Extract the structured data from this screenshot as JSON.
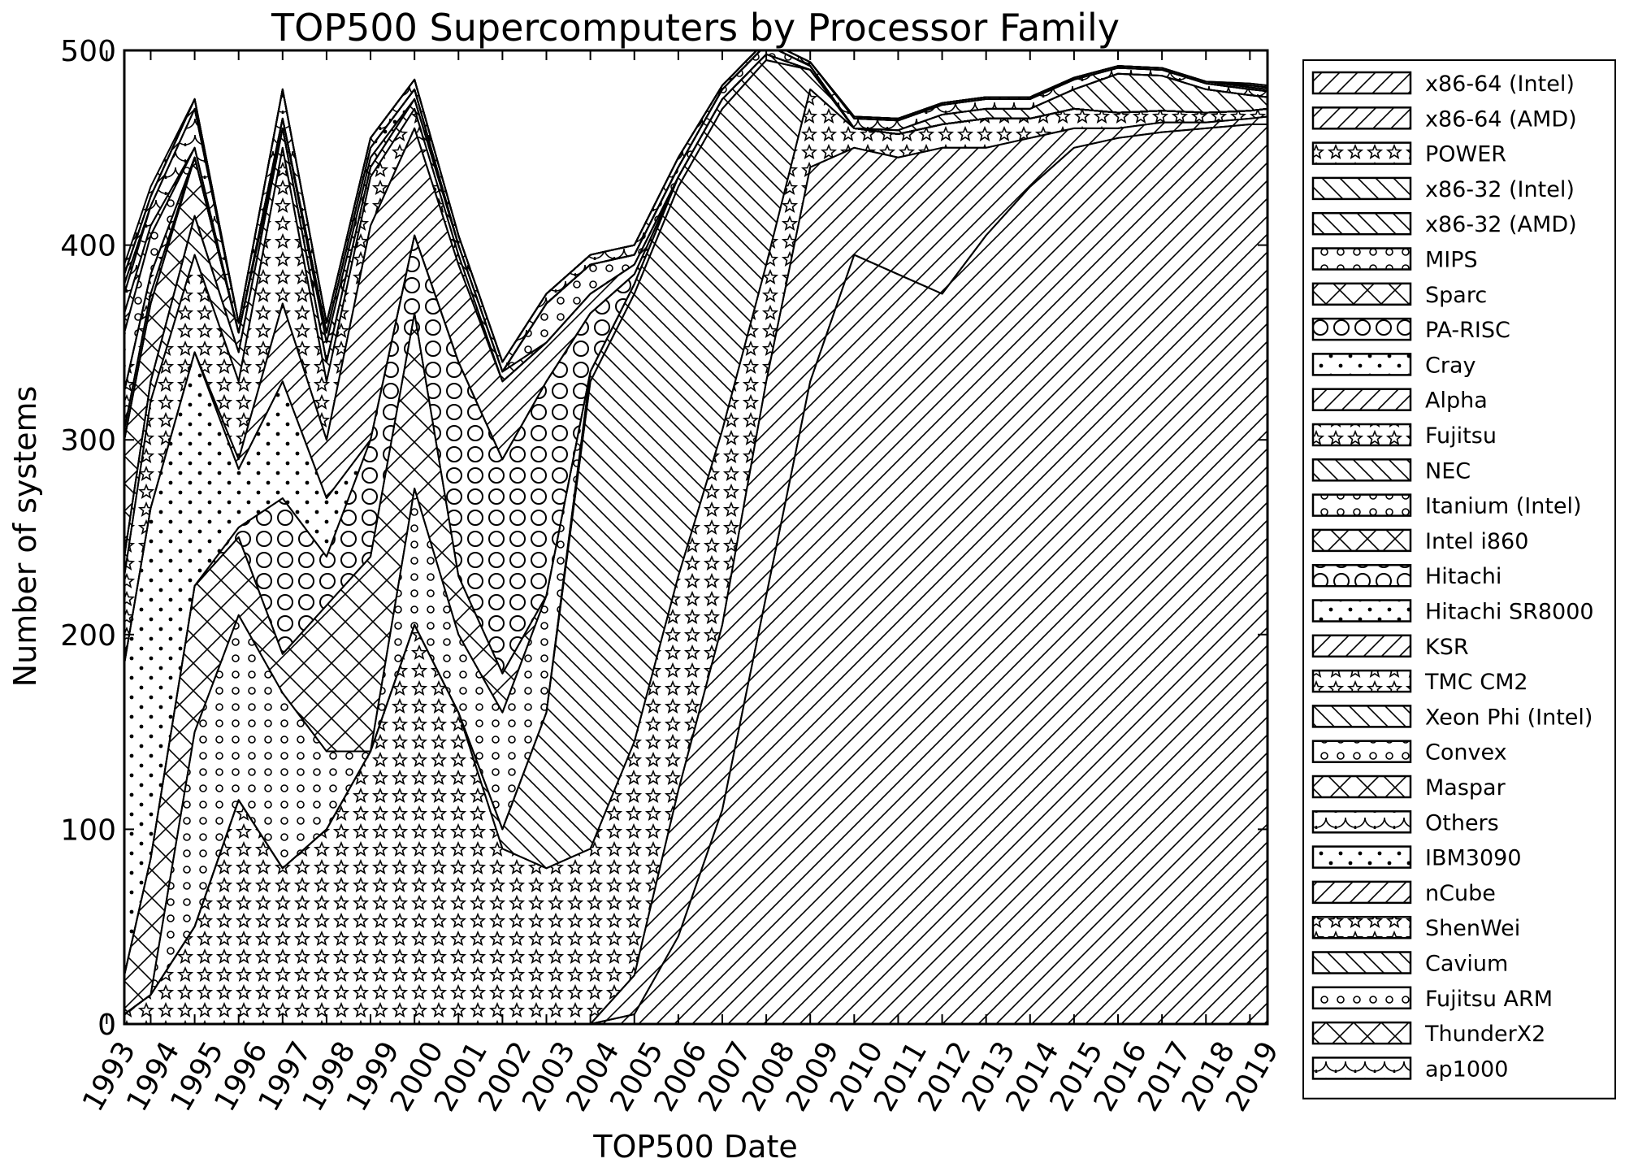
{
  "chart_data": {
    "type": "area",
    "stacked": true,
    "title": "TOP500 Supercomputers by Processor Family",
    "xlabel": "TOP500 Date",
    "ylabel": "Number of systems",
    "xlim": [
      1993.4,
      2019.4
    ],
    "ylim": [
      0,
      500
    ],
    "yticks": [
      0,
      100,
      200,
      300,
      400,
      500
    ],
    "xticks": [
      "1993",
      "1994",
      "1995",
      "1996",
      "1997",
      "1998",
      "1999",
      "2000",
      "2001",
      "2002",
      "2003",
      "2004",
      "2005",
      "2006",
      "2007",
      "2008",
      "2009",
      "2010",
      "2011",
      "2012",
      "2013",
      "2014",
      "2015",
      "2016",
      "2017",
      "2018",
      "2019"
    ],
    "grid": false,
    "legend_position": "right",
    "x": [
      1993.4,
      1994,
      1995,
      1996,
      1997,
      1998,
      1999,
      2000,
      2001,
      2002,
      2003,
      2004,
      2005,
      2006,
      2007,
      2008,
      2009,
      2010,
      2011,
      2012,
      2013,
      2014,
      2015,
      2016,
      2017,
      2018,
      2019,
      2019.4
    ],
    "series": [
      {
        "name": "x86-64 (Intel)",
        "pattern": "fdiag",
        "values": [
          0,
          0,
          0,
          0,
          0,
          0,
          0,
          0,
          0,
          0,
          0,
          0,
          5,
          45,
          110,
          220,
          330,
          395,
          385,
          375,
          405,
          430,
          450,
          455,
          458,
          460,
          462,
          462
        ]
      },
      {
        "name": "x86-64 (AMD)",
        "pattern": "fdiag",
        "values": [
          0,
          0,
          0,
          0,
          0,
          0,
          0,
          0,
          0,
          0,
          0,
          0,
          20,
          75,
          95,
          110,
          110,
          55,
          60,
          75,
          45,
          25,
          10,
          5,
          5,
          3,
          3,
          4
        ]
      },
      {
        "name": "POWER",
        "pattern": "stars",
        "values": [
          5,
          15,
          50,
          115,
          80,
          100,
          140,
          205,
          160,
          90,
          80,
          90,
          120,
          110,
          100,
          60,
          40,
          10,
          12,
          12,
          15,
          10,
          10,
          8,
          6,
          5,
          4,
          4
        ]
      },
      {
        "name": "x86-32 (Intel)",
        "pattern": "bdiag",
        "values": [
          0,
          0,
          0,
          0,
          0,
          0,
          0,
          0,
          0,
          10,
          80,
          240,
          230,
          200,
          165,
          105,
          10,
          0,
          0,
          0,
          0,
          0,
          0,
          0,
          0,
          0,
          0,
          0
        ]
      },
      {
        "name": "x86-32 (AMD)",
        "pattern": "bdiag",
        "values": [
          0,
          0,
          0,
          0,
          0,
          0,
          0,
          0,
          0,
          0,
          0,
          5,
          5,
          5,
          5,
          3,
          0,
          0,
          0,
          0,
          0,
          0,
          0,
          0,
          0,
          0,
          0,
          0
        ]
      },
      {
        "name": "MIPS",
        "pattern": "smallcircles",
        "values": [
          0,
          0,
          100,
          95,
          90,
          40,
          0,
          70,
          40,
          60,
          60,
          0,
          0,
          0,
          0,
          0,
          0,
          0,
          0,
          0,
          0,
          0,
          0,
          0,
          0,
          0,
          0,
          0
        ]
      },
      {
        "name": "Sparc",
        "pattern": "crossdiag",
        "values": [
          20,
          70,
          75,
          40,
          20,
          75,
          100,
          90,
          30,
          20,
          0,
          0,
          0,
          0,
          0,
          0,
          0,
          0,
          0,
          0,
          0,
          0,
          0,
          0,
          0,
          0,
          0,
          0
        ]
      },
      {
        "name": "PA-RISC",
        "pattern": "bigcircles",
        "values": [
          0,
          0,
          0,
          5,
          80,
          25,
          60,
          40,
          110,
          110,
          110,
          30,
          5,
          0,
          0,
          0,
          0,
          0,
          0,
          0,
          0,
          0,
          0,
          0,
          0,
          0,
          0,
          0
        ]
      },
      {
        "name": "Cray",
        "pattern": "dots",
        "values": [
          160,
          180,
          120,
          30,
          60,
          30,
          0,
          0,
          0,
          0,
          0,
          0,
          0,
          0,
          0,
          0,
          0,
          0,
          0,
          0,
          0,
          0,
          0,
          0,
          0,
          0,
          0,
          0
        ]
      },
      {
        "name": "Alpha",
        "pattern": "fdiag",
        "values": [
          0,
          0,
          0,
          5,
          40,
          30,
          110,
          55,
          50,
          40,
          20,
          10,
          5,
          0,
          0,
          0,
          0,
          0,
          0,
          0,
          0,
          0,
          0,
          0,
          0,
          0,
          0,
          0
        ]
      },
      {
        "name": "Fujitsu",
        "pattern": "stars",
        "values": [
          45,
          55,
          50,
          40,
          80,
          30,
          25,
          10,
          5,
          0,
          0,
          0,
          0,
          0,
          0,
          0,
          0,
          0,
          0,
          0,
          0,
          0,
          0,
          0,
          0,
          0,
          0,
          0
        ]
      },
      {
        "name": "NEC",
        "pattern": "bdiag",
        "values": [
          10,
          10,
          20,
          15,
          10,
          10,
          5,
          5,
          5,
          5,
          0,
          0,
          0,
          0,
          0,
          0,
          0,
          0,
          0,
          0,
          0,
          0,
          0,
          0,
          0,
          0,
          0,
          0
        ]
      },
      {
        "name": "Itanium (Intel)",
        "pattern": "smallcircles",
        "values": [
          0,
          0,
          0,
          0,
          0,
          0,
          0,
          0,
          0,
          0,
          20,
          15,
          5,
          5,
          5,
          5,
          2,
          0,
          0,
          0,
          0,
          0,
          0,
          0,
          0,
          0,
          0,
          0
        ]
      },
      {
        "name": "Intel i860",
        "pattern": "crossdiag",
        "values": [
          60,
          40,
          30,
          10,
          0,
          0,
          0,
          0,
          0,
          0,
          0,
          0,
          0,
          0,
          0,
          0,
          0,
          0,
          0,
          0,
          0,
          0,
          0,
          0,
          0,
          0,
          0,
          0
        ]
      },
      {
        "name": "Hitachi",
        "pattern": "bigcircles",
        "values": [
          0,
          0,
          0,
          0,
          5,
          10,
          5,
          0,
          0,
          0,
          0,
          0,
          0,
          0,
          0,
          0,
          0,
          0,
          0,
          0,
          0,
          0,
          0,
          0,
          0,
          0,
          0,
          0
        ]
      },
      {
        "name": "Hitachi SR8000",
        "pattern": "dots",
        "values": [
          0,
          0,
          0,
          0,
          0,
          5,
          5,
          5,
          0,
          0,
          0,
          0,
          0,
          0,
          0,
          0,
          0,
          0,
          0,
          0,
          0,
          0,
          0,
          0,
          0,
          0,
          0,
          0
        ]
      },
      {
        "name": "KSR",
        "pattern": "fdiag",
        "values": [
          5,
          5,
          0,
          0,
          0,
          0,
          0,
          0,
          0,
          0,
          0,
          0,
          0,
          0,
          0,
          0,
          0,
          0,
          0,
          0,
          0,
          0,
          0,
          0,
          0,
          0,
          0,
          0
        ]
      },
      {
        "name": "TMC CM2",
        "pattern": "stars",
        "values": [
          20,
          10,
          0,
          0,
          0,
          0,
          0,
          0,
          0,
          0,
          0,
          0,
          0,
          0,
          0,
          0,
          0,
          0,
          0,
          0,
          0,
          0,
          0,
          0,
          0,
          0,
          0,
          0
        ]
      },
      {
        "name": "Xeon Phi (Intel)",
        "pattern": "bdiag",
        "values": [
          0,
          0,
          0,
          0,
          0,
          0,
          0,
          0,
          0,
          0,
          0,
          0,
          0,
          0,
          0,
          0,
          0,
          0,
          2,
          5,
          5,
          5,
          10,
          20,
          18,
          12,
          8,
          6
        ]
      },
      {
        "name": "Convex",
        "pattern": "smallcircles",
        "values": [
          30,
          20,
          5,
          0,
          0,
          0,
          0,
          0,
          0,
          0,
          0,
          0,
          0,
          0,
          0,
          0,
          0,
          0,
          0,
          0,
          0,
          0,
          0,
          0,
          0,
          0,
          0,
          0
        ]
      },
      {
        "name": "Maspar",
        "pattern": "crossdiag",
        "values": [
          10,
          5,
          0,
          0,
          0,
          0,
          0,
          0,
          0,
          0,
          0,
          0,
          0,
          0,
          0,
          0,
          0,
          0,
          0,
          0,
          0,
          0,
          0,
          0,
          0,
          0,
          0,
          0
        ]
      },
      {
        "name": "Others",
        "pattern": "scallops",
        "values": [
          10,
          10,
          20,
          5,
          15,
          5,
          5,
          5,
          5,
          5,
          5,
          5,
          5,
          5,
          2,
          2,
          2,
          5,
          5,
          5,
          5,
          5,
          5,
          3,
          3,
          3,
          3,
          3
        ]
      },
      {
        "name": "IBM3090",
        "pattern": "dots",
        "values": [
          5,
          0,
          0,
          0,
          0,
          0,
          0,
          0,
          0,
          0,
          0,
          0,
          0,
          0,
          0,
          0,
          0,
          0,
          0,
          0,
          0,
          0,
          0,
          0,
          0,
          0,
          0,
          0
        ]
      },
      {
        "name": "nCube",
        "pattern": "fdiag",
        "values": [
          5,
          5,
          5,
          0,
          0,
          0,
          0,
          0,
          0,
          0,
          0,
          0,
          0,
          0,
          0,
          0,
          0,
          0,
          0,
          0,
          0,
          0,
          0,
          0,
          0,
          0,
          0,
          0
        ]
      },
      {
        "name": "ShenWei",
        "pattern": "stars",
        "values": [
          0,
          0,
          0,
          0,
          0,
          0,
          0,
          0,
          0,
          0,
          0,
          0,
          0,
          0,
          0,
          0,
          0,
          1,
          1,
          1,
          1,
          1,
          1,
          1,
          1,
          1,
          1,
          1
        ]
      },
      {
        "name": "Cavium",
        "pattern": "bdiag",
        "values": [
          0,
          0,
          0,
          0,
          0,
          0,
          0,
          0,
          0,
          0,
          0,
          0,
          0,
          0,
          0,
          0,
          0,
          0,
          0,
          0,
          0,
          0,
          0,
          0,
          0,
          0,
          1,
          1
        ]
      },
      {
        "name": "Fujitsu ARM",
        "pattern": "smallcircles",
        "values": [
          0,
          0,
          0,
          0,
          0,
          0,
          0,
          0,
          0,
          0,
          0,
          0,
          0,
          0,
          0,
          0,
          0,
          0,
          0,
          0,
          0,
          0,
          0,
          0,
          0,
          0,
          0,
          0
        ]
      },
      {
        "name": "ThunderX2",
        "pattern": "crossdiag",
        "values": [
          0,
          0,
          0,
          0,
          0,
          0,
          0,
          0,
          0,
          0,
          0,
          0,
          0,
          0,
          0,
          0,
          0,
          0,
          0,
          0,
          0,
          0,
          0,
          0,
          0,
          0,
          1,
          1
        ]
      },
      {
        "name": "ap1000",
        "pattern": "scallops",
        "values": [
          5,
          5,
          0,
          0,
          0,
          0,
          0,
          0,
          0,
          0,
          0,
          0,
          0,
          0,
          0,
          0,
          0,
          0,
          0,
          0,
          0,
          0,
          0,
          0,
          0,
          0,
          0,
          0
        ]
      }
    ]
  }
}
